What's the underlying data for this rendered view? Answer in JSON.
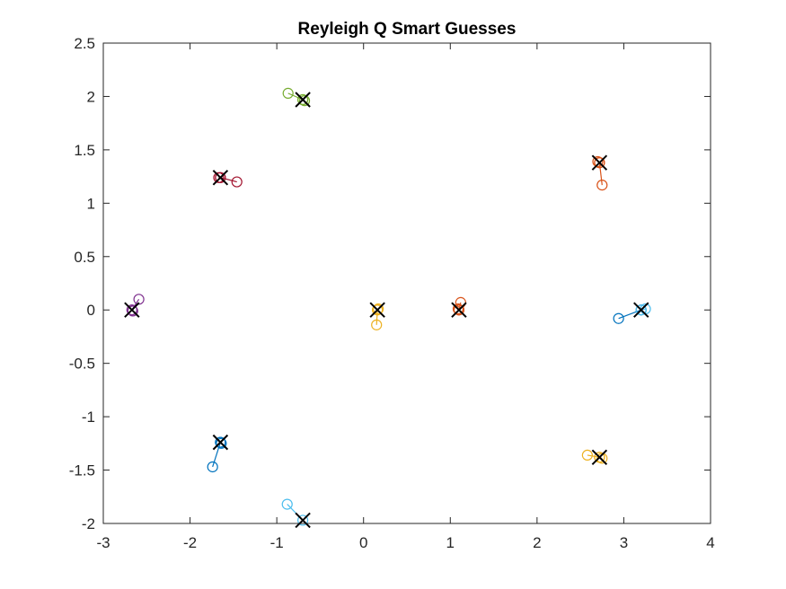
{
  "chart_data": {
    "type": "scatter",
    "title": "Reyleigh Q Smart Guesses",
    "xlabel": "",
    "ylabel": "",
    "xlim": [
      -3,
      4
    ],
    "ylim": [
      -2,
      2.5
    ],
    "xticks": [
      -3,
      -2,
      -1,
      0,
      1,
      2,
      3,
      4
    ],
    "yticks": [
      -2,
      -1.5,
      -1,
      -0.5,
      0,
      0.5,
      1,
      1.5,
      2,
      2.5
    ],
    "xtick_labels": [
      "-3",
      "-2",
      "-1",
      "0",
      "1",
      "2",
      "3",
      "4"
    ],
    "ytick_labels": [
      "-2",
      "-1.5",
      "-1",
      "-0.5",
      "0",
      "0.5",
      "1",
      "1.5",
      "2",
      "2.5"
    ],
    "grid": false,
    "legend": "none",
    "axis_color": "#262626",
    "marker_circle": "guess",
    "marker_x": "converged eigenvalue",
    "series": [
      {
        "color": "#0072BD",
        "path": [
          [
            2.94,
            -0.08
          ],
          [
            3.2,
            0.0
          ]
        ],
        "final": [
          3.2,
          0.0
        ]
      },
      {
        "color": "#D95319",
        "path": [
          [
            2.75,
            1.17
          ],
          [
            2.72,
            1.38
          ]
        ],
        "final": [
          2.72,
          1.38
        ]
      },
      {
        "color": "#EDB120",
        "path": [
          [
            2.58,
            -1.36
          ],
          [
            2.72,
            -1.38
          ]
        ],
        "final": [
          2.72,
          -1.38
        ]
      },
      {
        "color": "#7E2F8E",
        "path": [
          [
            -2.59,
            0.1
          ],
          [
            -2.67,
            0.0
          ]
        ],
        "final": [
          -2.67,
          0.0
        ]
      },
      {
        "color": "#77AC30",
        "path": [
          [
            -0.87,
            2.03
          ],
          [
            -0.7,
            1.97
          ]
        ],
        "final": [
          -0.7,
          1.97
        ]
      },
      {
        "color": "#4DBEEE",
        "path": [
          [
            -0.88,
            -1.82
          ],
          [
            -0.7,
            -1.97
          ]
        ],
        "final": [
          -0.7,
          -1.97
        ]
      },
      {
        "color": "#A2142F",
        "path": [
          [
            -1.46,
            1.2
          ],
          [
            -1.65,
            1.24
          ]
        ],
        "final": [
          -1.65,
          1.24
        ]
      },
      {
        "color": "#0072BD",
        "path": [
          [
            -1.74,
            -1.47
          ],
          [
            -1.65,
            -1.24
          ]
        ],
        "final": [
          -1.65,
          -1.24
        ]
      },
      {
        "color": "#D95319",
        "path": [
          [
            1.12,
            0.07
          ],
          [
            1.1,
            0.0
          ]
        ],
        "final": [
          1.1,
          0.0
        ]
      },
      {
        "color": "#EDB120",
        "path": [
          [
            0.15,
            -0.14
          ],
          [
            0.16,
            0.0
          ]
        ],
        "final": [
          0.16,
          0.0
        ]
      },
      {
        "color": "#4DBEEE",
        "path": [
          [
            3.25,
            0.01
          ],
          [
            3.2,
            0.0
          ]
        ],
        "final": [
          3.2,
          0.0
        ]
      },
      {
        "color": "#D95319",
        "path": [
          [
            2.7,
            1.39
          ],
          [
            2.72,
            1.38
          ]
        ],
        "final": [
          2.72,
          1.38
        ]
      },
      {
        "color": "#EDB120",
        "path": [
          [
            2.75,
            -1.39
          ],
          [
            2.72,
            -1.38
          ]
        ],
        "final": [
          2.72,
          -1.38
        ]
      },
      {
        "color": "#7E2F8E",
        "path": [
          [
            -2.66,
            -0.01
          ],
          [
            -2.67,
            0.0
          ]
        ],
        "final": [
          -2.67,
          0.0
        ]
      },
      {
        "color": "#77AC30",
        "path": [
          [
            -0.68,
            1.96
          ],
          [
            -0.7,
            1.97
          ]
        ],
        "final": [
          -0.7,
          1.97
        ]
      },
      {
        "color": "#A2142F",
        "path": [
          [
            -1.67,
            1.24
          ],
          [
            -1.65,
            1.24
          ]
        ],
        "final": [
          -1.65,
          1.24
        ]
      },
      {
        "color": "#0072BD",
        "path": [
          [
            -1.64,
            -1.25
          ],
          [
            -1.65,
            -1.24
          ]
        ],
        "final": [
          -1.65,
          -1.24
        ]
      },
      {
        "color": "#D95319",
        "path": [
          [
            1.09,
            0.01
          ],
          [
            1.1,
            0.0
          ]
        ],
        "final": [
          1.1,
          0.0
        ]
      },
      {
        "color": "#EDB120",
        "path": [
          [
            0.17,
            0.01
          ],
          [
            0.16,
            0.0
          ]
        ],
        "final": [
          0.16,
          0.0
        ]
      }
    ]
  }
}
